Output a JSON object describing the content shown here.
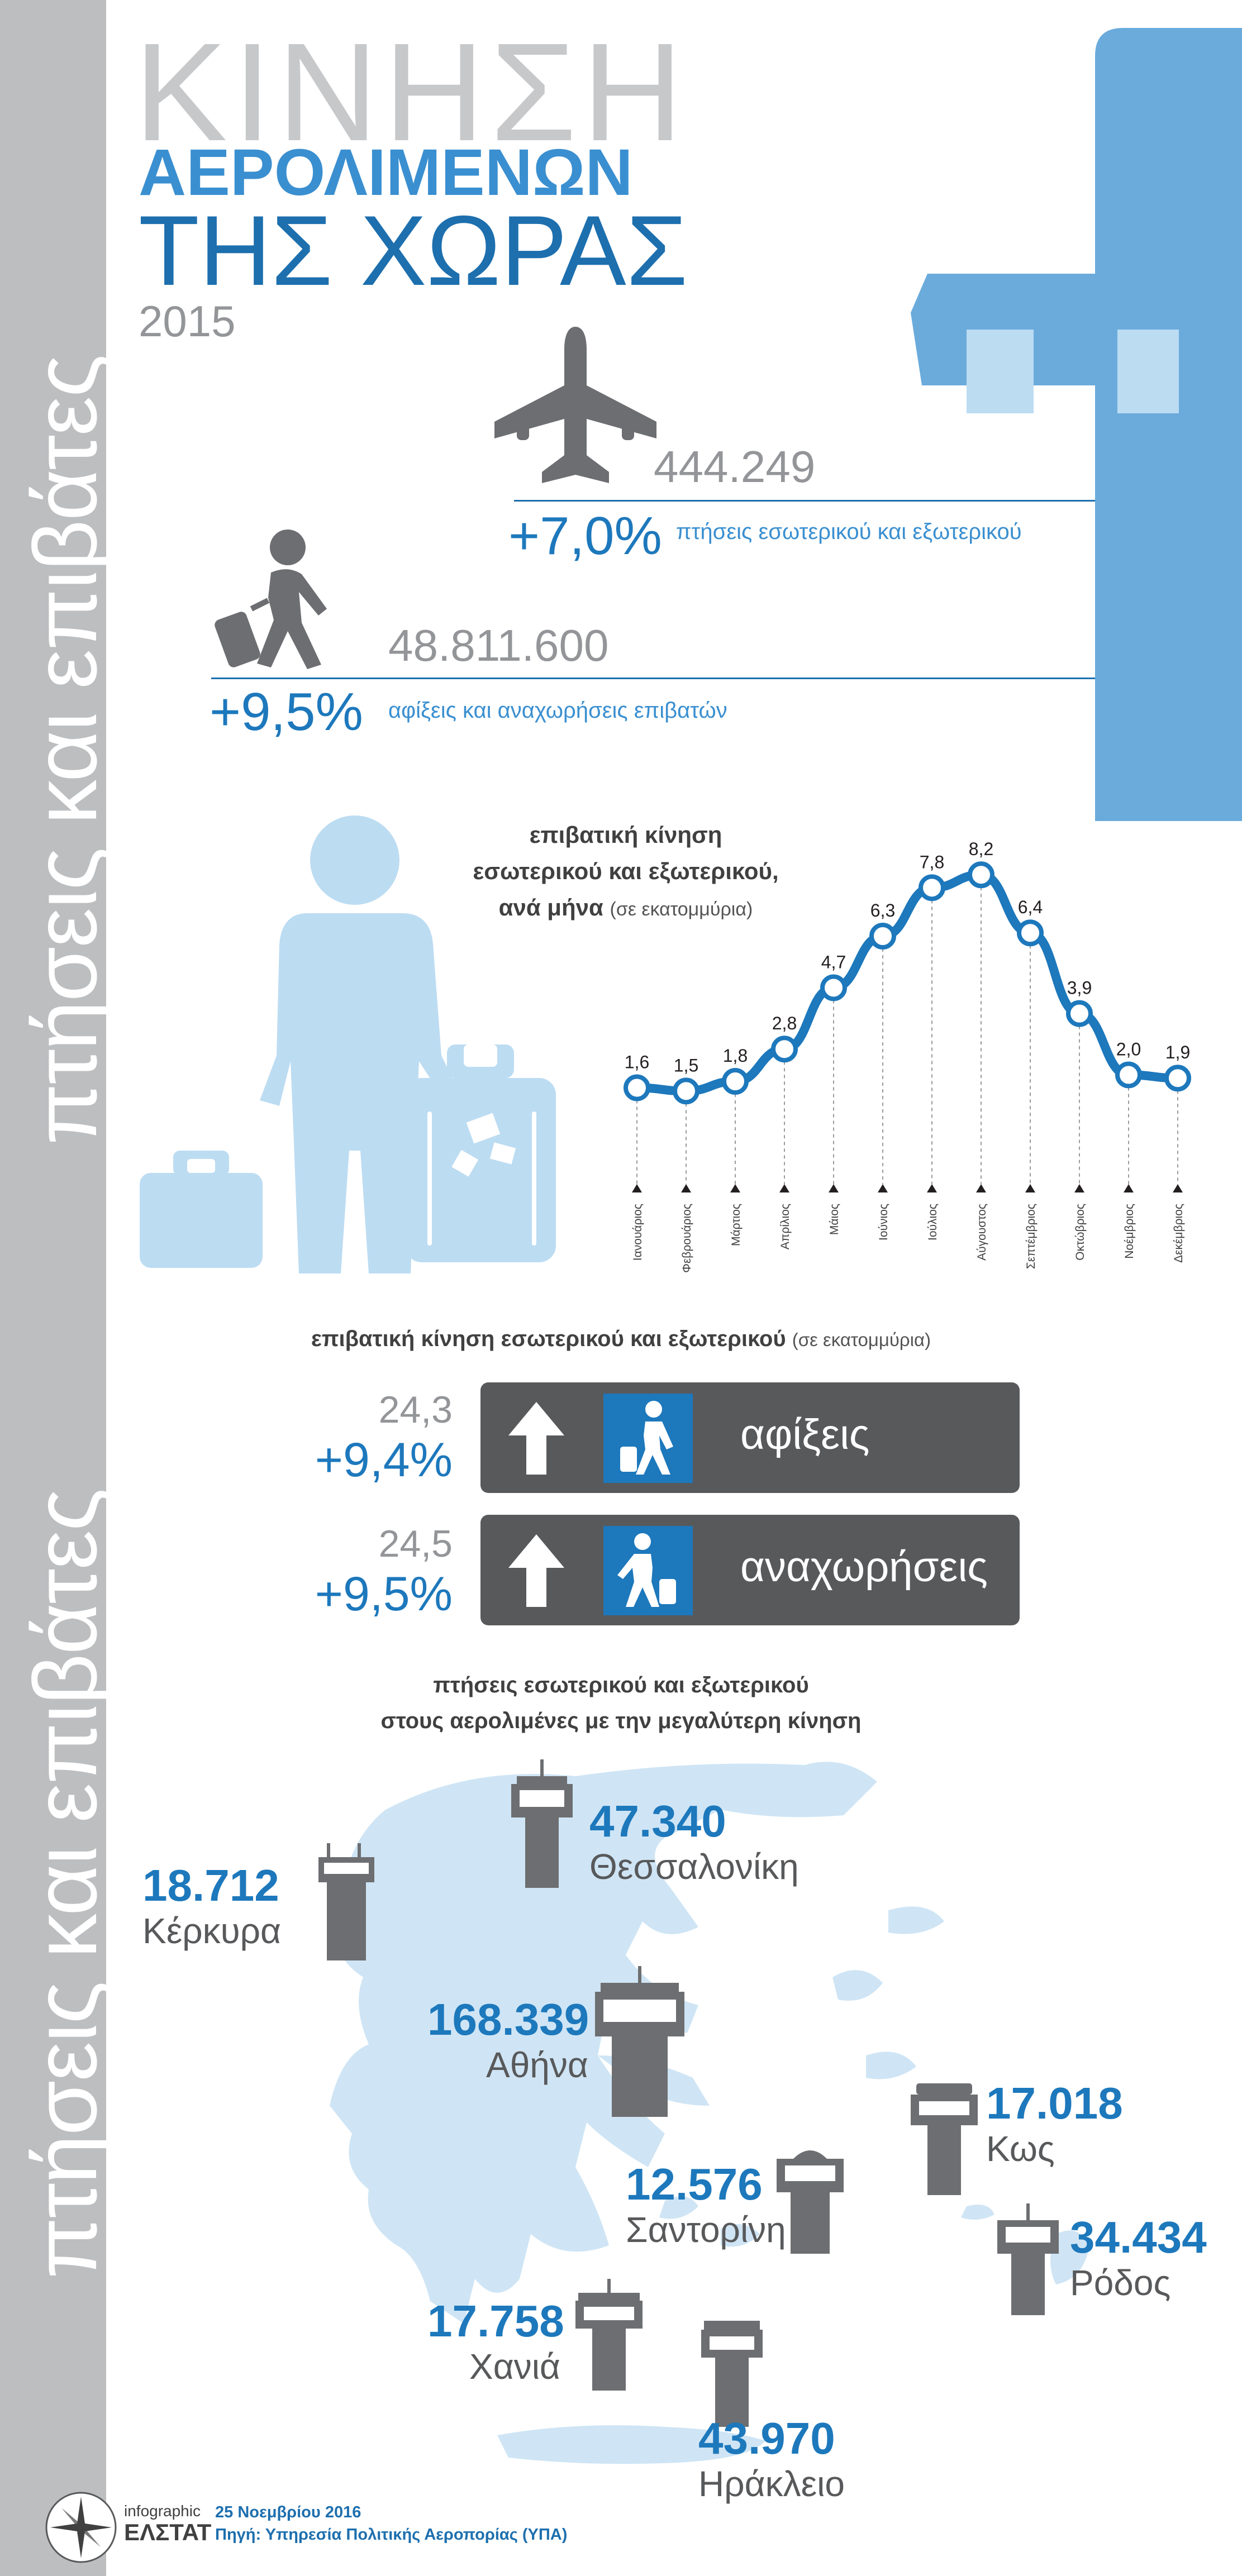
{
  "side_label": "πτήσεις και επιβάτες",
  "title": {
    "line1": "ΚΙΝΗΣΗ",
    "line2": "ΑΕΡΟΛΙΜΕΝΩΝ",
    "line3": "ΤΗΣ ΧΩΡΑΣ",
    "year": "2015"
  },
  "flights": {
    "value": "444.249",
    "change": "+7,0%",
    "caption": "πτήσεις εσωτερικού και εξωτερικού"
  },
  "passengers": {
    "value": "48.811.600",
    "change": "+9,5%",
    "caption": "αφίξεις και αναχωρήσεις επιβατών"
  },
  "monthly": {
    "title1": "επιβατική κίνηση",
    "title2": "εσωτερικού και εξωτερικού,",
    "title3": "ανά μήνα",
    "unit": "(σε εκατομμύρια)"
  },
  "summary": {
    "heading": "επιβατική κίνηση εσωτερικού και εξωτερικού",
    "unit": "(σε εκατομμύρια)",
    "arrivals": {
      "value": "24,3",
      "change": "+9,4%",
      "label": "αφίξεις"
    },
    "departures": {
      "value": "24,5",
      "change": "+9,5%",
      "label": "αναχωρήσεις"
    }
  },
  "airports": {
    "heading1": "πτήσεις εσωτερικού και εξωτερικού",
    "heading2": "στους αερολιμένες με την μεγαλύτερη κίνηση",
    "list": [
      {
        "value": "47.340",
        "name": "Θεσσαλονίκη"
      },
      {
        "value": "18.712",
        "name": "Κέρκυρα"
      },
      {
        "value": "168.339",
        "name": "Αθήνα"
      },
      {
        "value": "17.018",
        "name": "Κως"
      },
      {
        "value": "12.576",
        "name": "Σαντορίνη"
      },
      {
        "value": "34.434",
        "name": "Ρόδος"
      },
      {
        "value": "17.758",
        "name": "Χανιά"
      },
      {
        "value": "43.970",
        "name": "Ηράκλειο"
      }
    ]
  },
  "footer": {
    "brand1": "infographic",
    "brand2": "ΕΛΣΤΑΤ",
    "date": "25 Νοεμβρίου 2016",
    "source": "Πηγή: Υπηρεσία Πολιτικής Αεροπορίας (ΥΠΑ)"
  },
  "colors": {
    "accent": "#1d78bc",
    "light_blue": "#bcdcf2",
    "tower_blue": "#6aabdc",
    "grey": "#939598",
    "dark": "#58595b"
  },
  "chart_data": {
    "type": "line",
    "categories": [
      "Ιανουάριος",
      "Φεβρουάριος",
      "Μάρτιος",
      "Απρίλιος",
      "Μάιος",
      "Ιούνιος",
      "Ιούλιος",
      "Αύγουστος",
      "Σεπτέμβριος",
      "Οκτώβριος",
      "Νοέμβριος",
      "Δεκέμβριος"
    ],
    "values": [
      1.6,
      1.5,
      1.8,
      2.8,
      4.7,
      6.3,
      7.8,
      8.2,
      6.4,
      3.9,
      2.0,
      1.9
    ],
    "labels": [
      "1,6",
      "1,5",
      "1,8",
      "2,8",
      "4,7",
      "6,3",
      "7,8",
      "8,2",
      "6,4",
      "3,9",
      "2,0",
      "1,9"
    ],
    "ylim": [
      0,
      9
    ],
    "grid": false
  }
}
